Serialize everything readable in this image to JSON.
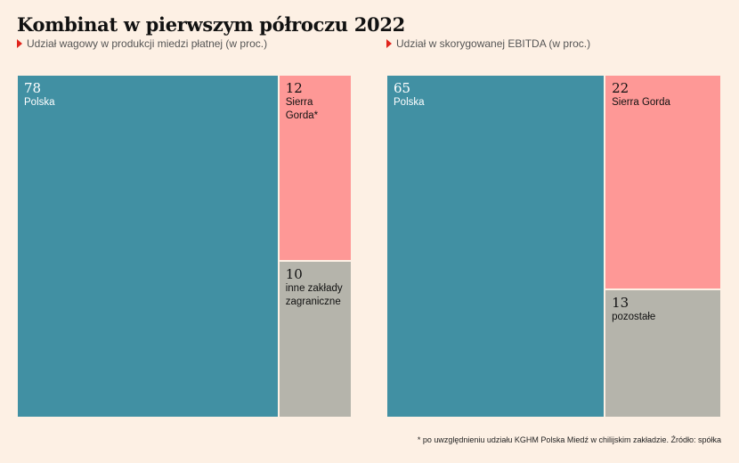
{
  "title": "Kombinat w pierwszym półroczu 2022",
  "footnote": "* po uwzględnieniu udziału KGHM Polska Miedź w chilijskim zakładzie. Źródło: spółka",
  "colors": {
    "polska": "#4190a3",
    "sierra_gorda": "#fe9896",
    "other": "#b5b4ab",
    "accent_triangle": "#e0241c",
    "background": "#fdf0e4"
  },
  "chart_data": [
    {
      "type": "treemap",
      "subtitle": "Udział wagowy w produkcji miedzi płatnej (w proc.)",
      "units": "%",
      "segments": [
        {
          "label": "Polska",
          "value": 78,
          "color": "#4190a3"
        },
        {
          "label": "Sierra Gorda*",
          "value": 12,
          "color": "#fe9896"
        },
        {
          "label": "inne zakłady\nzagraniczne",
          "value": 10,
          "color": "#b5b4ab"
        }
      ]
    },
    {
      "type": "treemap",
      "subtitle": "Udział w skorygowanej EBITDA (w proc.)",
      "units": "%",
      "segments": [
        {
          "label": "Polska",
          "value": 65,
          "color": "#4190a3"
        },
        {
          "label": "Sierra Gorda",
          "value": 22,
          "color": "#fe9896"
        },
        {
          "label": "pozostałe",
          "value": 13,
          "color": "#b5b4ab"
        }
      ]
    }
  ]
}
